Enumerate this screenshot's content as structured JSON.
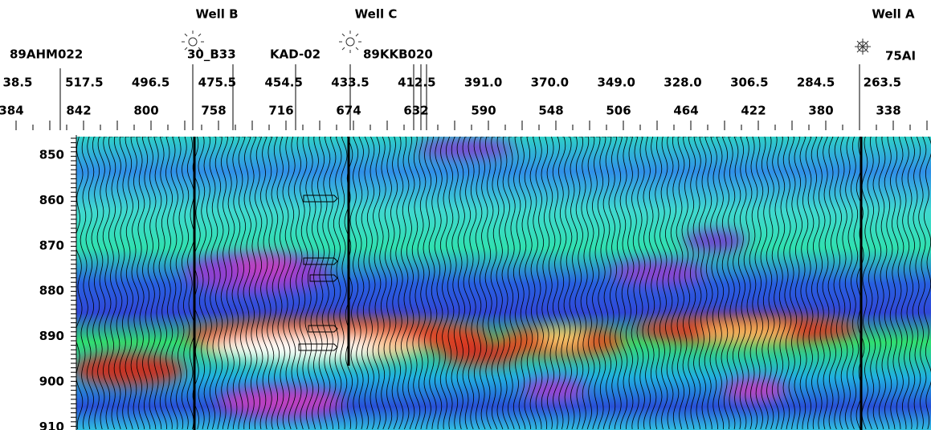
{
  "wells": [
    {
      "name": "Well B",
      "label": "30_B33"
    },
    {
      "name": "Well C",
      "label": "KAD-02"
    },
    {
      "name": "Well A",
      "label": "75AI"
    }
  ],
  "line_labels": [
    "89AHM022",
    "89KKB020"
  ],
  "shotpoints": [
    "38.5",
    "517.5",
    "496.5",
    "475.5",
    "454.5",
    "433.5",
    "412.5",
    "391.0",
    "370.0",
    "349.0",
    "328.0",
    "306.5",
    "284.5",
    "263.5"
  ],
  "cdps": [
    "384",
    "842",
    "800",
    "758",
    "716",
    "674",
    "632",
    "590",
    "548",
    "506",
    "464",
    "422",
    "380",
    "338"
  ],
  "depths": [
    "850",
    "860",
    "870",
    "880",
    "890",
    "900",
    "910"
  ]
}
